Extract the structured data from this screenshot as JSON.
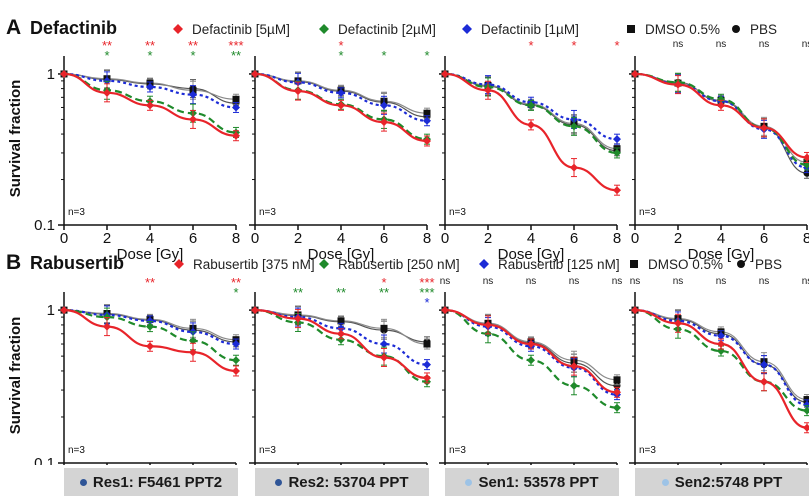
{
  "colors": {
    "red": "#e8242a",
    "green": "#1f8a2b",
    "blue": "#1c2bd6",
    "dmso": "#8a8a8a",
    "pbs": "#555555",
    "dark_dot": "#2f5597",
    "light_dot": "#9dc3e6"
  },
  "figure": {
    "ylabel": "Survival fraction",
    "xlabel": "Dose [Gy]",
    "n_label": "n=3",
    "xticks": [
      "0",
      "2",
      "4",
      "6",
      "8"
    ],
    "yticks": [
      "0.1",
      "1"
    ]
  },
  "cell_lines": [
    {
      "label": "Res1: F5461 PPT2",
      "dot": "dark"
    },
    {
      "label": "Res2: 53704 PPT",
      "dot": "dark"
    },
    {
      "label": "Sen1: 53578 PPT",
      "dot": "light"
    },
    {
      "label": "Sen2:5748 PPT",
      "dot": "light"
    }
  ],
  "chart_data": [
    {
      "type": "line",
      "panel_letter": "A",
      "title": "Defactinib",
      "legend": [
        "Defactinib [5µM]",
        "Defactinib [2µM]",
        "Defactinib [1µM]",
        "DMSO 0.5%",
        "PBS"
      ],
      "x": [
        0,
        2,
        4,
        6,
        8
      ],
      "ylim": [
        0.1,
        1.2
      ],
      "yscale": "log",
      "xlim": [
        0,
        8
      ],
      "panels": [
        {
          "series": [
            {
              "values": [
                1,
                0.75,
                0.62,
                0.5,
                0.39
              ]
            },
            {
              "values": [
                1,
                0.78,
                0.66,
                0.55,
                0.41
              ]
            },
            {
              "values": [
                1,
                0.9,
                0.82,
                0.73,
                0.6
              ]
            },
            {
              "values": [
                1,
                0.93,
                0.87,
                0.78,
                0.68
              ]
            },
            {
              "values": [
                1,
                0.92,
                0.86,
                0.8,
                0.64
              ]
            }
          ],
          "sig": [
            {
              "x": 2,
              "red": "**",
              "green": "*"
            },
            {
              "x": 4,
              "red": "**",
              "green": "*"
            },
            {
              "x": 6,
              "red": "**",
              "green": "*"
            },
            {
              "x": 8,
              "red": "***",
              "green": "**"
            }
          ]
        },
        {
          "series": [
            {
              "values": [
                1,
                0.77,
                0.62,
                0.48,
                0.36
              ]
            },
            {
              "values": [
                1,
                0.78,
                0.63,
                0.5,
                0.37
              ]
            },
            {
              "values": [
                1,
                0.88,
                0.75,
                0.62,
                0.49
              ]
            },
            {
              "values": [
                1,
                0.9,
                0.78,
                0.66,
                0.55
              ]
            },
            {
              "values": [
                1,
                0.89,
                0.77,
                0.65,
                0.52
              ]
            }
          ],
          "sig": [
            {
              "x": 4,
              "red": "*",
              "green": "*"
            },
            {
              "x": 6,
              "green": "*"
            },
            {
              "x": 8,
              "green": "*"
            }
          ]
        },
        {
          "series": [
            {
              "values": [
                1,
                0.78,
                0.46,
                0.24,
                0.17
              ]
            },
            {
              "values": [
                1,
                0.82,
                0.62,
                0.45,
                0.3
              ]
            },
            {
              "values": [
                1,
                0.85,
                0.65,
                0.5,
                0.37
              ]
            },
            {
              "values": [
                1,
                0.84,
                0.63,
                0.47,
                0.32
              ]
            },
            {
              "values": [
                1,
                0.83,
                0.62,
                0.46,
                0.31
              ]
            }
          ],
          "sig": [
            {
              "x": 4,
              "red": "*"
            },
            {
              "x": 6,
              "red": "*"
            },
            {
              "x": 8,
              "red": "*"
            }
          ]
        },
        {
          "series": [
            {
              "values": [
                1,
                0.85,
                0.62,
                0.44,
                0.28
              ]
            },
            {
              "values": [
                1,
                0.88,
                0.68,
                0.44,
                0.25
              ]
            },
            {
              "values": [
                1,
                0.86,
                0.66,
                0.43,
                0.24
              ]
            },
            {
              "values": [
                1,
                0.87,
                0.67,
                0.45,
                0.26
              ]
            },
            {
              "values": [
                1,
                0.88,
                0.66,
                0.44,
                0.22
              ]
            }
          ],
          "sig": [
            {
              "x": 2,
              "black": "ns"
            },
            {
              "x": 4,
              "black": "ns"
            },
            {
              "x": 6,
              "black": "ns"
            },
            {
              "x": 8,
              "black": "ns"
            }
          ]
        }
      ]
    },
    {
      "type": "line",
      "panel_letter": "B",
      "title": "Rabusertib",
      "legend": [
        "Rabusertib [375 nM]",
        "Rabusertib [250 nM]",
        "Rabusertib [125 nM]",
        "DMSO 0.5%",
        "PBS"
      ],
      "x": [
        0,
        2,
        4,
        6,
        8
      ],
      "ylim": [
        0.1,
        1.2
      ],
      "yscale": "log",
      "xlim": [
        0,
        8
      ],
      "panels": [
        {
          "series": [
            {
              "values": [
                1,
                0.78,
                0.58,
                0.53,
                0.4
              ]
            },
            {
              "values": [
                1,
                0.9,
                0.78,
                0.63,
                0.47
              ]
            },
            {
              "values": [
                1,
                0.93,
                0.85,
                0.72,
                0.6
              ]
            },
            {
              "values": [
                1,
                0.95,
                0.87,
                0.76,
                0.64
              ]
            },
            {
              "values": [
                1,
                0.94,
                0.86,
                0.74,
                0.62
              ]
            }
          ],
          "sig": [
            {
              "x": 4,
              "red": "**"
            },
            {
              "x": 8,
              "red": "**",
              "green": "*"
            }
          ]
        },
        {
          "series": [
            {
              "values": [
                1,
                0.88,
                0.7,
                0.49,
                0.36
              ]
            },
            {
              "values": [
                1,
                0.83,
                0.64,
                0.5,
                0.34
              ]
            },
            {
              "values": [
                1,
                0.9,
                0.76,
                0.6,
                0.44
              ]
            },
            {
              "values": [
                1,
                0.93,
                0.85,
                0.76,
                0.6
              ]
            },
            {
              "values": [
                1,
                0.92,
                0.84,
                0.74,
                0.62
              ]
            }
          ],
          "sig": [
            {
              "x": 2,
              "green": "**"
            },
            {
              "x": 4,
              "green": "**"
            },
            {
              "x": 6,
              "red": "*",
              "green": "**"
            },
            {
              "x": 8,
              "red": "***",
              "green": "***",
              "blue": "*"
            }
          ]
        },
        {
          "series": [
            {
              "values": [
                1,
                0.8,
                0.6,
                0.43,
                0.29
              ]
            },
            {
              "values": [
                1,
                0.7,
                0.47,
                0.32,
                0.23
              ]
            },
            {
              "values": [
                1,
                0.78,
                0.58,
                0.42,
                0.28
              ]
            },
            {
              "values": [
                1,
                0.82,
                0.62,
                0.47,
                0.35
              ]
            },
            {
              "values": [
                1,
                0.81,
                0.61,
                0.45,
                0.32
              ]
            }
          ],
          "sig": [
            {
              "x": 0,
              "black": "ns"
            },
            {
              "x": 2,
              "black": "ns"
            },
            {
              "x": 4,
              "black": "ns"
            },
            {
              "x": 6,
              "black": "ns"
            },
            {
              "x": 8,
              "black": "ns"
            }
          ]
        },
        {
          "series": [
            {
              "values": [
                1,
                0.82,
                0.6,
                0.34,
                0.17
              ]
            },
            {
              "values": [
                1,
                0.75,
                0.54,
                0.34,
                0.22
              ]
            },
            {
              "values": [
                1,
                0.85,
                0.68,
                0.44,
                0.24
              ]
            },
            {
              "values": [
                1,
                0.88,
                0.72,
                0.46,
                0.26
              ]
            },
            {
              "values": [
                1,
                0.87,
                0.7,
                0.44,
                0.25
              ]
            }
          ],
          "sig": [
            {
              "x": 0,
              "black": "ns"
            },
            {
              "x": 2,
              "black": "ns"
            },
            {
              "x": 4,
              "black": "ns"
            },
            {
              "x": 6,
              "black": "ns"
            },
            {
              "x": 8,
              "black": "ns"
            }
          ]
        }
      ]
    }
  ]
}
